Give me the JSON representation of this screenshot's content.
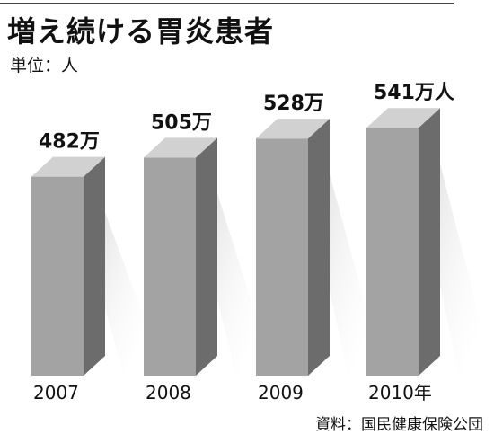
{
  "title": "増え続ける胃炎患者",
  "unit_label": "単位：人",
  "source_label": "資料：国民健康保険公団",
  "colors": {
    "front": "#a3a3a3",
    "side": "#6c6c6c",
    "top": "#d1d1d1",
    "shadow": "#ebebeb"
  },
  "chart_data": {
    "type": "bar",
    "categories": [
      "2007",
      "2008",
      "2009",
      "2010年"
    ],
    "values": [
      482,
      505,
      528,
      541
    ],
    "value_labels": [
      "482万",
      "505万",
      "528万",
      "541万人"
    ],
    "title": "増え続ける胃炎患者",
    "ylabel": "単位：人",
    "legend": "none",
    "grid": false
  }
}
